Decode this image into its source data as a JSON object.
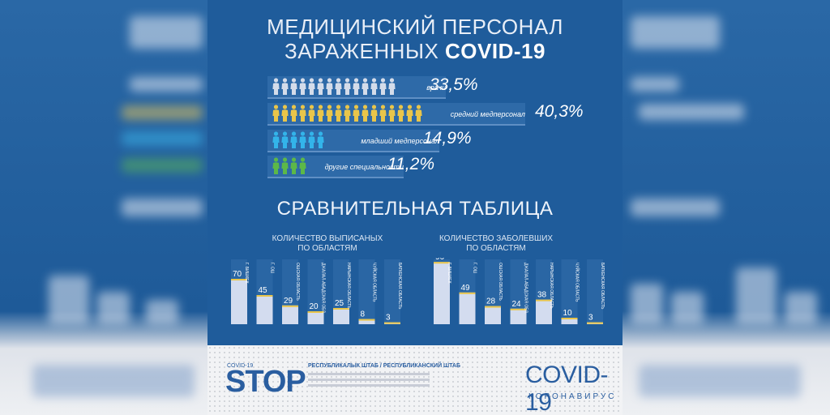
{
  "header": {
    "title_line1": "МЕДИЦИНСКИЙ ПЕРСОНАЛ",
    "title_line2_prefix": "ЗАРАЖЕННЫХ ",
    "title_line2_bold": "COVID-19"
  },
  "staff_groups": [
    {
      "label": "врачи",
      "value": "33,5%",
      "icons": 14,
      "color": "#d4dcea"
    },
    {
      "label": "средний медперсонал",
      "value": "40,3%",
      "icons": 17,
      "color": "#e9c54a"
    },
    {
      "label": "младший медперсонал",
      "value": "14,9%",
      "icons": 6,
      "color": "#33b4ea"
    },
    {
      "label": "другие специальности",
      "value": "11,2%",
      "icons": 4,
      "color": "#5cb848"
    }
  ],
  "comparison_title": "СРАВНИТЕЛЬНАЯ ТАБЛИЦА",
  "chart_data": [
    {
      "type": "bar",
      "title": "КОЛИЧЕСТВО ВЫПИСАНЫХ\nПО ОБЛАСТЯМ",
      "categories": [
        "Г. БИШКЕК",
        "Г. ОШ",
        "ОШСКАЯ ОБЛАСТЬ",
        "ДЖАЛАЛ-АБАДСКАЯ ОБЛ.",
        "НАРЫНСКАЯ ОБЛАСТЬ",
        "ЧУЙСКАЯ ОБЛАСТЬ",
        "БАТКЕНСКАЯ ОБЛАСТЬ"
      ],
      "values": [
        70,
        45,
        29,
        20,
        25,
        8,
        3
      ],
      "ylim": [
        0,
        100
      ]
    },
    {
      "type": "bar",
      "title": "КОЛИЧЕСТВО ЗАБОЛЕВШИХ\nПО ОБЛАСТЯМ",
      "categories": [
        "Г. БИШКЕК",
        "Г. ОШ",
        "ОШСКАЯ ОБЛАСТЬ",
        "ДЖАЛАЛ-АБАДСКАЯ ОБЛ.",
        "НАРЫНСКАЯ ОБЛАСТЬ",
        "ЧУЙСКАЯ ОБЛАСТЬ",
        "БАТКЕНСКАЯ ОБЛАСТЬ"
      ],
      "values": [
        96,
        49,
        28,
        24,
        38,
        10,
        3
      ],
      "ylim": [
        0,
        100
      ]
    }
  ],
  "footer": {
    "stop_small": "COVID-19",
    "stop_logo": "STOP",
    "hq_text": "РЕСПУБЛИКАЛЫК ШТАБ / РЕСПУБЛИКАНСКИЙ ШТАБ",
    "covid_title": "COVID-19",
    "covid_subtitle": "КОРОНАВИРУС"
  },
  "colors": {
    "panel_bg": "#1f5c9b",
    "bar_fill": "#d3dcef",
    "bar_accent": "#e9c54a",
    "brand_blue": "#2a5ea0"
  }
}
